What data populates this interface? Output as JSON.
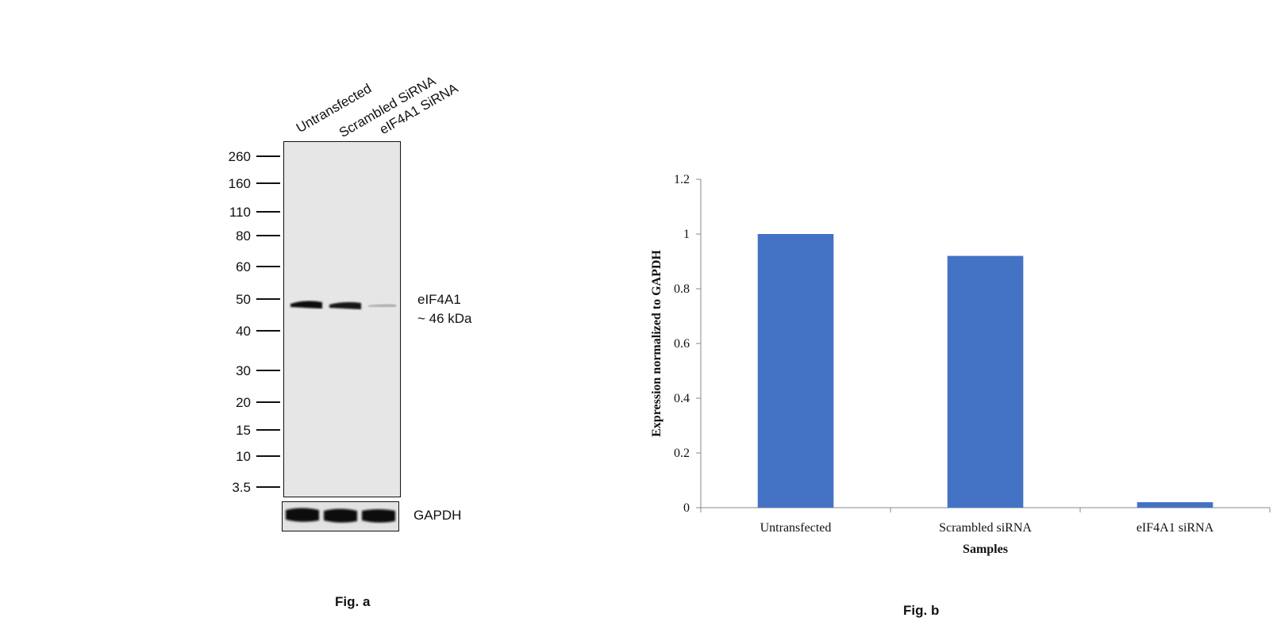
{
  "fig_a": {
    "lanes": [
      "Untransfected",
      "Scrambled SiRNA",
      "eIF4A1 SiRNA"
    ],
    "markers": [
      "260",
      "160",
      "110",
      "80",
      "60",
      "50",
      "40",
      "30",
      "20",
      "15",
      "10",
      "3.5"
    ],
    "band_label_1": "eIF4A1",
    "band_label_2": "~ 46 kDa",
    "gapdh_label": "GAPDH",
    "caption": "Fig. a",
    "band_intensities": [
      1.0,
      0.92,
      0.05
    ]
  },
  "fig_b": {
    "caption": "Fig. b",
    "chart_data": {
      "type": "bar",
      "categories": [
        "Untransfected",
        "Scrambled siRNA",
        "eIF4A1 siRNA"
      ],
      "values": [
        1.0,
        0.92,
        0.02
      ],
      "xlabel": "Samples",
      "ylabel": "Expression normalized to GAPDH",
      "ylim": [
        0,
        1.2
      ],
      "yticks": [
        "0",
        "0.2",
        "0.4",
        "0.6",
        "0.8",
        "1",
        "1.2"
      ],
      "grid": false,
      "bar_color": "#4472C4"
    }
  }
}
